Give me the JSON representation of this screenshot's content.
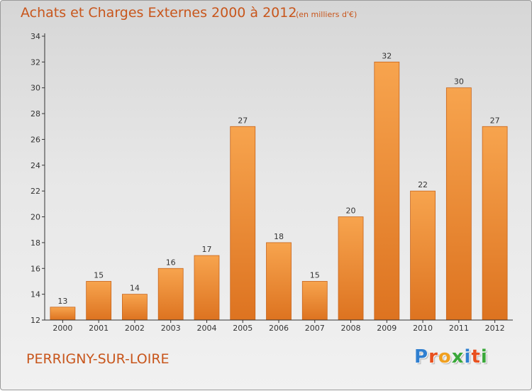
{
  "header": {
    "title": "Achats et Charges Externes 2000 à 2012",
    "subtitle": "(en milliers d'€)"
  },
  "footer": {
    "commune": "PERRIGNY-SUR-LOIRE",
    "logo": "Proxiti",
    "logo_colors": [
      "#2f7fd0",
      "#e8501e",
      "#f0a020",
      "#3aa83a",
      "#2f7fd0",
      "#e8501e",
      "#3aa83a"
    ]
  },
  "colors": {
    "bar_top": "#f7a44e",
    "bar_bottom": "#dd7320",
    "bar_edge": "#c8651c",
    "accent": "#c8561c"
  },
  "chart_data": {
    "type": "bar",
    "title": "Achats et Charges Externes 2000 à 2012",
    "subtitle": "(en milliers d'€)",
    "categories": [
      "2000",
      "2001",
      "2002",
      "2003",
      "2004",
      "2005",
      "2006",
      "2007",
      "2008",
      "2009",
      "2010",
      "2011",
      "2012"
    ],
    "values": [
      13,
      15,
      14,
      16,
      17,
      27,
      18,
      15,
      20,
      32,
      22,
      30,
      27
    ],
    "ylim": [
      12,
      34
    ],
    "yticks": [
      12,
      14,
      16,
      18,
      20,
      22,
      24,
      26,
      28,
      30,
      32,
      34
    ],
    "grid": false,
    "legend": "none"
  }
}
